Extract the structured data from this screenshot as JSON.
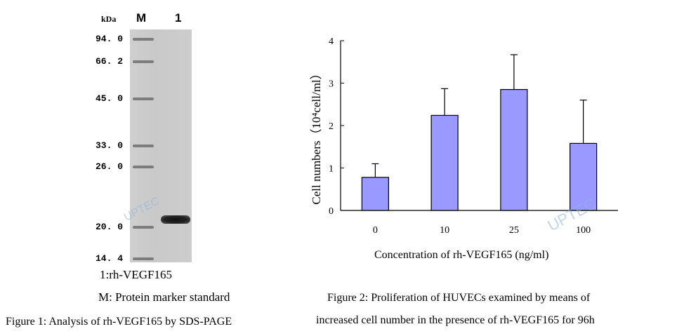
{
  "figure1": {
    "unit_label": "kDa",
    "lane_labels": [
      "M",
      "1"
    ],
    "marker_weights": [
      "94. 0",
      "66. 2",
      "45. 0",
      "33. 0",
      "26. 0",
      "20. 0",
      "14. 4"
    ],
    "legend_line1": "1:rh-VEGF165",
    "legend_line2": "M: Protein marker standard",
    "caption": "Figure 1: Analysis of rh-VEGF165 by SDS-PAGE",
    "watermark": "UPTEC"
  },
  "figure2": {
    "caption_line1": "Figure 2: Proliferation of HUVECs examined by means of",
    "caption_line2": "increased cell number in the presence of rh-VEGF165 for 96h",
    "watermark": "UPTEC"
  },
  "chart_data": {
    "type": "bar",
    "categories": [
      "0",
      "10",
      "25",
      "100"
    ],
    "values": [
      0.78,
      2.24,
      2.85,
      1.58
    ],
    "error_upper": [
      0.32,
      0.63,
      0.82,
      1.02
    ],
    "xlabel": "Concentration of rh-VEGF165 (ng/ml)",
    "ylabel": "Cell numbers（10⁴cell/ml）",
    "yticks": [
      "0",
      "1",
      "2",
      "3",
      "4"
    ],
    "ylim": [
      0,
      4
    ],
    "bar_color": "#9999ff",
    "grid": false,
    "legend": "none"
  }
}
